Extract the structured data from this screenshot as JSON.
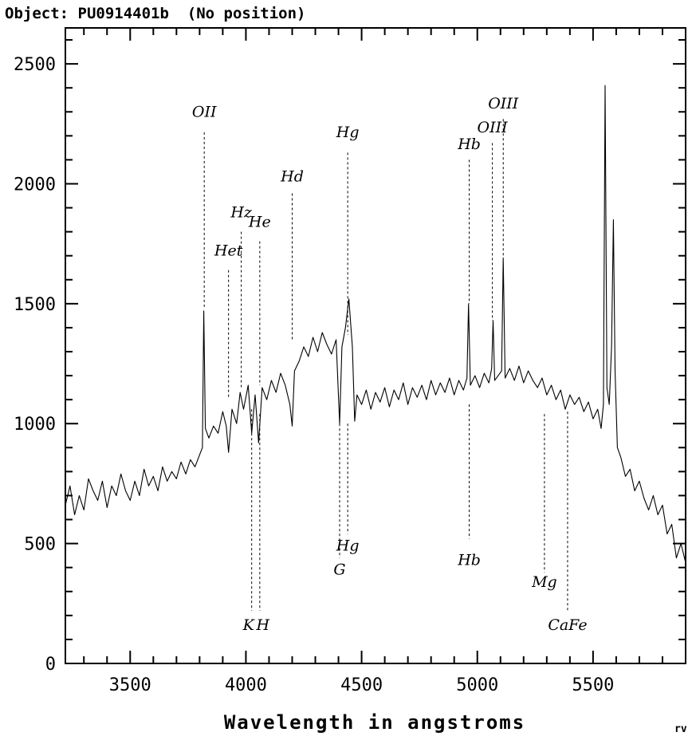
{
  "header": {
    "object_label": "Object: PU0914401b  (No position)",
    "corner_mark": "rv"
  },
  "chart_data": {
    "type": "line",
    "title": "",
    "xlabel": "Wavelength in angstroms",
    "ylabel": "",
    "xlim": [
      3220,
      5900
    ],
    "ylim": [
      0,
      2650
    ],
    "x_ticks": [
      3500,
      4000,
      4500,
      5000,
      5500
    ],
    "y_ticks": [
      0,
      500,
      1000,
      1500,
      2000,
      2500
    ],
    "grid": false,
    "legend": "none",
    "colors": {
      "line": "#000000",
      "markers": "#000000"
    },
    "series": [
      {
        "values": [
          [
            3220,
            660
          ],
          [
            3240,
            740
          ],
          [
            3260,
            620
          ],
          [
            3280,
            700
          ],
          [
            3300,
            640
          ],
          [
            3320,
            770
          ],
          [
            3340,
            720
          ],
          [
            3360,
            680
          ],
          [
            3380,
            760
          ],
          [
            3400,
            650
          ],
          [
            3420,
            740
          ],
          [
            3440,
            700
          ],
          [
            3460,
            790
          ],
          [
            3480,
            720
          ],
          [
            3500,
            680
          ],
          [
            3520,
            760
          ],
          [
            3540,
            700
          ],
          [
            3560,
            810
          ],
          [
            3580,
            740
          ],
          [
            3600,
            780
          ],
          [
            3620,
            720
          ],
          [
            3640,
            820
          ],
          [
            3660,
            760
          ],
          [
            3680,
            800
          ],
          [
            3700,
            770
          ],
          [
            3720,
            840
          ],
          [
            3740,
            790
          ],
          [
            3760,
            850
          ],
          [
            3780,
            820
          ],
          [
            3800,
            870
          ],
          [
            3812,
            900
          ],
          [
            3818,
            1470
          ],
          [
            3825,
            980
          ],
          [
            3840,
            940
          ],
          [
            3860,
            990
          ],
          [
            3880,
            960
          ],
          [
            3900,
            1050
          ],
          [
            3915,
            990
          ],
          [
            3925,
            880
          ],
          [
            3940,
            1060
          ],
          [
            3960,
            1000
          ],
          [
            3975,
            1130
          ],
          [
            3990,
            1060
          ],
          [
            4010,
            1160
          ],
          [
            4025,
            960
          ],
          [
            4040,
            1120
          ],
          [
            4055,
            920
          ],
          [
            4070,
            1150
          ],
          [
            4090,
            1100
          ],
          [
            4110,
            1180
          ],
          [
            4130,
            1130
          ],
          [
            4150,
            1210
          ],
          [
            4170,
            1160
          ],
          [
            4190,
            1080
          ],
          [
            4200,
            990
          ],
          [
            4210,
            1220
          ],
          [
            4230,
            1260
          ],
          [
            4250,
            1320
          ],
          [
            4270,
            1280
          ],
          [
            4290,
            1360
          ],
          [
            4310,
            1300
          ],
          [
            4330,
            1380
          ],
          [
            4350,
            1330
          ],
          [
            4370,
            1290
          ],
          [
            4390,
            1350
          ],
          [
            4405,
            1000
          ],
          [
            4415,
            1320
          ],
          [
            4430,
            1400
          ],
          [
            4445,
            1520
          ],
          [
            4460,
            1320
          ],
          [
            4470,
            1010
          ],
          [
            4480,
            1120
          ],
          [
            4500,
            1080
          ],
          [
            4520,
            1140
          ],
          [
            4540,
            1060
          ],
          [
            4560,
            1130
          ],
          [
            4580,
            1090
          ],
          [
            4600,
            1150
          ],
          [
            4620,
            1070
          ],
          [
            4640,
            1140
          ],
          [
            4660,
            1100
          ],
          [
            4680,
            1170
          ],
          [
            4700,
            1080
          ],
          [
            4720,
            1150
          ],
          [
            4740,
            1110
          ],
          [
            4760,
            1160
          ],
          [
            4780,
            1100
          ],
          [
            4800,
            1180
          ],
          [
            4820,
            1120
          ],
          [
            4840,
            1170
          ],
          [
            4860,
            1130
          ],
          [
            4880,
            1190
          ],
          [
            4900,
            1120
          ],
          [
            4920,
            1180
          ],
          [
            4940,
            1140
          ],
          [
            4955,
            1190
          ],
          [
            4962,
            1500
          ],
          [
            4970,
            1160
          ],
          [
            4990,
            1200
          ],
          [
            5010,
            1150
          ],
          [
            5030,
            1210
          ],
          [
            5050,
            1170
          ],
          [
            5062,
            1230
          ],
          [
            5068,
            1430
          ],
          [
            5075,
            1180
          ],
          [
            5090,
            1200
          ],
          [
            5105,
            1220
          ],
          [
            5112,
            1690
          ],
          [
            5120,
            1190
          ],
          [
            5140,
            1230
          ],
          [
            5160,
            1180
          ],
          [
            5180,
            1240
          ],
          [
            5200,
            1170
          ],
          [
            5220,
            1220
          ],
          [
            5240,
            1180
          ],
          [
            5260,
            1150
          ],
          [
            5280,
            1190
          ],
          [
            5300,
            1120
          ],
          [
            5320,
            1160
          ],
          [
            5340,
            1100
          ],
          [
            5360,
            1140
          ],
          [
            5380,
            1060
          ],
          [
            5400,
            1120
          ],
          [
            5420,
            1080
          ],
          [
            5440,
            1110
          ],
          [
            5460,
            1050
          ],
          [
            5480,
            1090
          ],
          [
            5500,
            1020
          ],
          [
            5520,
            1060
          ],
          [
            5535,
            980
          ],
          [
            5545,
            1080
          ],
          [
            5552,
            2410
          ],
          [
            5560,
            1150
          ],
          [
            5570,
            1080
          ],
          [
            5580,
            1320
          ],
          [
            5588,
            1850
          ],
          [
            5595,
            1220
          ],
          [
            5605,
            900
          ],
          [
            5620,
            860
          ],
          [
            5640,
            780
          ],
          [
            5660,
            810
          ],
          [
            5680,
            720
          ],
          [
            5700,
            760
          ],
          [
            5720,
            690
          ],
          [
            5740,
            640
          ],
          [
            5760,
            700
          ],
          [
            5780,
            620
          ],
          [
            5800,
            660
          ],
          [
            5820,
            540
          ],
          [
            5840,
            580
          ],
          [
            5860,
            440
          ],
          [
            5880,
            500
          ],
          [
            5900,
            420
          ]
        ]
      }
    ],
    "line_markers_upper": [
      {
        "label": "OII",
        "x": 3820,
        "top": 2215,
        "bottom": 1480,
        "label_y": 2280
      },
      {
        "label": "Het",
        "x": 3925,
        "top": 1640,
        "bottom": 1110,
        "label_y": 1700
      },
      {
        "label": "Hz",
        "x": 3980,
        "top": 1800,
        "bottom": 1150,
        "label_y": 1860
      },
      {
        "label": "He",
        "x": 4060,
        "top": 1760,
        "bottom": 1160,
        "label_y": 1820
      },
      {
        "label": "Hd",
        "x": 4200,
        "top": 1960,
        "bottom": 1350,
        "label_y": 2010
      },
      {
        "label": "Hg",
        "x": 4440,
        "top": 2130,
        "bottom": 1370,
        "label_y": 2195
      },
      {
        "label": "Hb",
        "x": 4965,
        "top": 2100,
        "bottom": 1500,
        "label_y": 2145
      },
      {
        "label": "OIII",
        "x": 5065,
        "top": 2170,
        "bottom": 1430,
        "label_y": 2215
      },
      {
        "label": "OIII",
        "x": 5112,
        "top": 2270,
        "bottom": 1690,
        "label_y": 2315
      }
    ],
    "line_markers_lower": [
      {
        "label": "K",
        "x": 4025,
        "top": 1060,
        "bottom": 220,
        "label_y": 140,
        "label_dx": -4
      },
      {
        "label": "H",
        "x": 4060,
        "top": 1040,
        "bottom": 220,
        "label_y": 140,
        "label_dx": 4
      },
      {
        "label": "G",
        "x": 4405,
        "top": 1020,
        "bottom": 440,
        "label_y": 370,
        "label_dx": 0
      },
      {
        "label": "Hg",
        "x": 4440,
        "top": 1000,
        "bottom": 540,
        "label_y": 470,
        "label_dx": 0
      },
      {
        "label": "Hb",
        "x": 4965,
        "top": 1080,
        "bottom": 520,
        "label_y": 410,
        "label_dx": 0
      },
      {
        "label": "Mg",
        "x": 5290,
        "top": 1040,
        "bottom": 380,
        "label_y": 320,
        "label_dx": 0
      },
      {
        "label": "CaFe",
        "x": 5390,
        "top": 1050,
        "bottom": 220,
        "label_y": 140,
        "label_dx": 0
      }
    ]
  }
}
